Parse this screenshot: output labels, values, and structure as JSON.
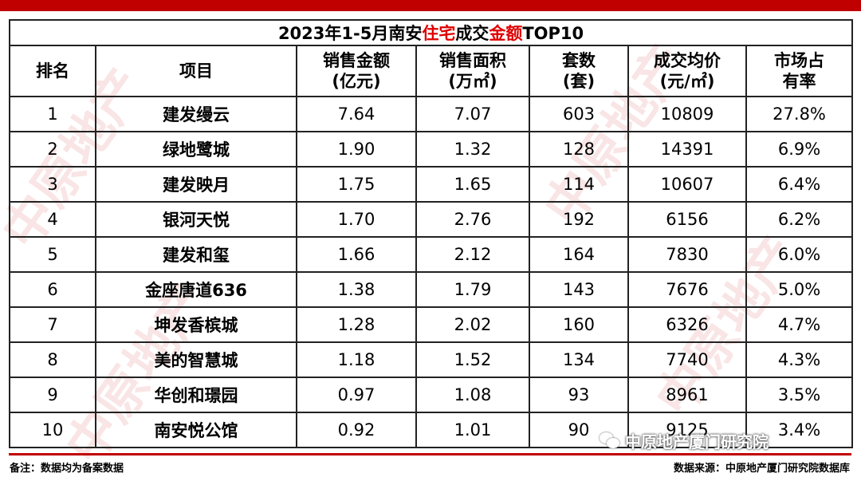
{
  "watermark": {
    "text": "中原地产"
  },
  "table": {
    "title": {
      "prefix": "2023年1-5月南安",
      "hl1": "住宅",
      "middle": "成交",
      "hl2": "金额",
      "suffix": "TOP10"
    },
    "headers": [
      {
        "line1": "排名",
        "line2": ""
      },
      {
        "line1": "项目",
        "line2": ""
      },
      {
        "line1": "销售金额",
        "line2": "(亿元)"
      },
      {
        "line1": "销售面积",
        "line2": "(万㎡)"
      },
      {
        "line1": "套数",
        "line2": "(套)"
      },
      {
        "line1": "成交均价",
        "line2": "(元/㎡)"
      },
      {
        "line1": "市场占",
        "line2": "有率"
      }
    ],
    "rows": [
      {
        "rank": "1",
        "project": "建发缦云",
        "amount": "7.64",
        "area": "7.07",
        "units": "603",
        "price": "10809",
        "share": "27.8%"
      },
      {
        "rank": "2",
        "project": "绿地鹭城",
        "amount": "1.90",
        "area": "1.32",
        "units": "128",
        "price": "14391",
        "share": "6.9%"
      },
      {
        "rank": "3",
        "project": "建发映月",
        "amount": "1.75",
        "area": "1.65",
        "units": "114",
        "price": "10607",
        "share": "6.4%"
      },
      {
        "rank": "4",
        "project": "银河天悦",
        "amount": "1.70",
        "area": "2.76",
        "units": "192",
        "price": "6156",
        "share": "6.2%"
      },
      {
        "rank": "5",
        "project": "建发和玺",
        "amount": "1.66",
        "area": "2.12",
        "units": "164",
        "price": "7830",
        "share": "6.0%"
      },
      {
        "rank": "6",
        "project": "金座唐道636",
        "amount": "1.38",
        "area": "1.79",
        "units": "143",
        "price": "7676",
        "share": "5.0%"
      },
      {
        "rank": "7",
        "project": "坤发香槟城",
        "amount": "1.28",
        "area": "2.02",
        "units": "160",
        "price": "6326",
        "share": "4.7%"
      },
      {
        "rank": "8",
        "project": "美的智慧城",
        "amount": "1.18",
        "area": "1.52",
        "units": "134",
        "price": "7740",
        "share": "4.3%"
      },
      {
        "rank": "9",
        "project": "华创和璟园",
        "amount": "0.97",
        "area": "1.08",
        "units": "93",
        "price": "8961",
        "share": "3.5%"
      },
      {
        "rank": "10",
        "project": "南安悦公馆",
        "amount": "0.92",
        "area": "1.01",
        "units": "90",
        "price": "9125",
        "share": "3.4%"
      }
    ]
  },
  "footer": {
    "note": "备注：数据均为备案数据",
    "source": "数据来源：中原地产厦门研究院数据库"
  },
  "wechat_badge": {
    "text": "中原地产厦门研究院"
  }
}
